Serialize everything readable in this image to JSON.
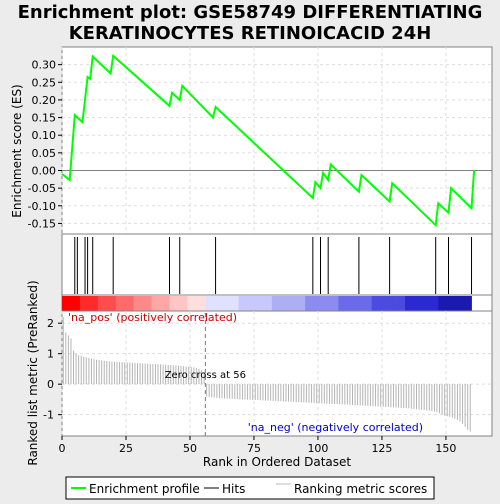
{
  "title": "Enrichment plot: GSE58749 DIFFERENTIATING\nKERATINOCYTES RETINOICACID 24H",
  "chart_data": {
    "type": "line",
    "xlabel": "Rank in Ordered Dataset",
    "xlim": [
      0,
      168
    ],
    "x_ticks": [
      0,
      25,
      50,
      75,
      100,
      125,
      150
    ],
    "es_panel": {
      "ylabel": "Enrichment score (ES)",
      "ylim": [
        -0.18,
        0.35
      ],
      "y_ticks": [
        -0.15,
        -0.1,
        -0.05,
        0.0,
        0.05,
        0.1,
        0.15,
        0.2,
        0.25,
        0.3
      ],
      "series": [
        {
          "name": "Enrichment profile",
          "color": "#00ff00",
          "x": [
            0,
            3,
            5,
            8,
            10,
            11,
            12,
            19,
            20,
            42,
            43,
            46,
            47,
            59,
            60,
            98,
            99,
            101,
            102,
            104,
            105,
            116,
            117,
            128,
            129,
            146,
            147,
            151,
            152,
            160,
            161
          ],
          "y": [
            -0.01,
            -0.027,
            0.157,
            0.137,
            0.265,
            0.26,
            0.323,
            0.275,
            0.325,
            0.183,
            0.22,
            0.2,
            0.24,
            0.15,
            0.18,
            -0.078,
            -0.033,
            -0.05,
            -0.007,
            -0.027,
            0.017,
            -0.06,
            -0.013,
            -0.088,
            -0.036,
            -0.155,
            -0.093,
            -0.12,
            -0.05,
            -0.107,
            0.0
          ]
        }
      ]
    },
    "hits": {
      "name": "Hits",
      "positions": [
        5,
        6,
        9,
        10,
        12,
        20,
        42,
        46,
        60,
        98,
        101,
        104,
        116,
        128,
        146,
        151,
        160
      ]
    },
    "metric_panel": {
      "ylabel": "Ranked list metric (PreRanked)",
      "ylim": [
        -1.7,
        2.4
      ],
      "y_ticks": [
        -1,
        0,
        1,
        2
      ],
      "series_name": "Ranking metric scores",
      "zero_cross": 56,
      "zero_cross_label": "Zero cross at 56",
      "pos_label": "'na_pos' (positively correlated)",
      "neg_label": "'na_neg' (negatively correlated)",
      "values": [
        2.2,
        1.7,
        1.6,
        1.5,
        1.1,
        1.0,
        0.95,
        0.93,
        0.9,
        0.88,
        0.86,
        0.84,
        0.82,
        0.8,
        0.79,
        0.78,
        0.77,
        0.76,
        0.75,
        0.74,
        0.74,
        0.73,
        0.73,
        0.72,
        0.72,
        0.71,
        0.71,
        0.7,
        0.7,
        0.69,
        0.69,
        0.68,
        0.68,
        0.67,
        0.67,
        0.66,
        0.66,
        0.65,
        0.65,
        0.64,
        0.64,
        0.63,
        0.63,
        0.62,
        0.62,
        0.61,
        0.6,
        0.59,
        0.58,
        0.57,
        0.56,
        0.55,
        0.53,
        0.5,
        0.46,
        0.4,
        -0.4,
        -0.42,
        -0.43,
        -0.44,
        -0.45,
        -0.46,
        -0.46,
        -0.47,
        -0.47,
        -0.48,
        -0.48,
        -0.49,
        -0.49,
        -0.5,
        -0.5,
        -0.5,
        -0.51,
        -0.51,
        -0.52,
        -0.52,
        -0.52,
        -0.53,
        -0.53,
        -0.54,
        -0.54,
        -0.54,
        -0.55,
        -0.55,
        -0.56,
        -0.56,
        -0.57,
        -0.57,
        -0.57,
        -0.58,
        -0.58,
        -0.59,
        -0.59,
        -0.6,
        -0.6,
        -0.6,
        -0.61,
        -0.61,
        -0.62,
        -0.62,
        -0.62,
        -0.63,
        -0.63,
        -0.64,
        -0.64,
        -0.65,
        -0.65,
        -0.65,
        -0.66,
        -0.66,
        -0.67,
        -0.67,
        -0.68,
        -0.68,
        -0.69,
        -0.69,
        -0.7,
        -0.7,
        -0.71,
        -0.71,
        -0.72,
        -0.72,
        -0.73,
        -0.73,
        -0.74,
        -0.74,
        -0.75,
        -0.75,
        -0.76,
        -0.76,
        -0.77,
        -0.77,
        -0.78,
        -0.78,
        -0.79,
        -0.79,
        -0.8,
        -0.81,
        -0.82,
        -0.83,
        -0.84,
        -0.85,
        -0.86,
        -0.87,
        -0.88,
        -0.9,
        -0.92,
        -0.95,
        -1.0,
        -1.03,
        -1.05,
        -1.07,
        -1.1,
        -1.13,
        -1.17,
        -1.22,
        -1.3,
        -1.4,
        -1.5,
        -1.55
      ]
    },
    "legend": [
      "Enrichment profile",
      "Hits",
      "Ranking metric scores"
    ],
    "legend_placement": "bottom"
  }
}
